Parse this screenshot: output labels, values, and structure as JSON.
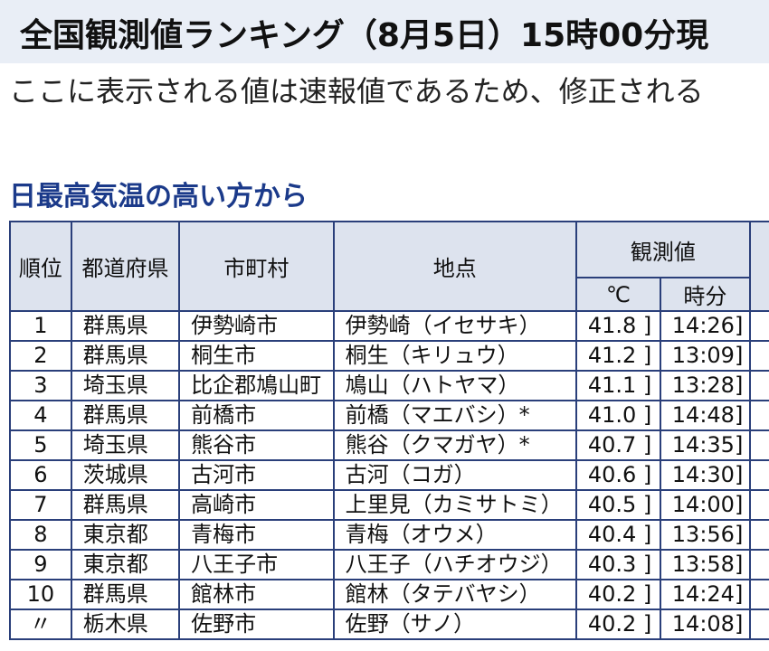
{
  "header": {
    "title": "全国観測値ランキング（8月5日）15時00分現"
  },
  "notice": {
    "text": "ここに表示される値は速報値であるため、修正される"
  },
  "section": {
    "title": "日最高気温の高い方から"
  },
  "table": {
    "headers": {
      "rank": "順位",
      "prefecture": "都道府県",
      "city": "市町村",
      "station": "地点",
      "observed": "観測値",
      "celsius": "℃",
      "time": "時分"
    },
    "rows": [
      {
        "rank": "1",
        "pref": "群馬県",
        "city": "伊勢崎市",
        "station": "伊勢崎（イセサキ）",
        "temp": "41.8 ]",
        "time": "14:26]"
      },
      {
        "rank": "2",
        "pref": "群馬県",
        "city": "桐生市",
        "station": "桐生（キリュウ）",
        "temp": "41.2 ]",
        "time": "13:09]"
      },
      {
        "rank": "3",
        "pref": "埼玉県",
        "city": "比企郡鳩山町",
        "station": "鳩山（ハトヤマ）",
        "temp": "41.1 ]",
        "time": "13:28]"
      },
      {
        "rank": "4",
        "pref": "群馬県",
        "city": "前橋市",
        "station": "前橋（マエバシ）*",
        "temp": "41.0 ]",
        "time": "14:48]"
      },
      {
        "rank": "5",
        "pref": "埼玉県",
        "city": "熊谷市",
        "station": "熊谷（クマガヤ）*",
        "temp": "40.7 ]",
        "time": "14:35]"
      },
      {
        "rank": "6",
        "pref": "茨城県",
        "city": "古河市",
        "station": "古河（コガ）",
        "temp": "40.6 ]",
        "time": "14:30]"
      },
      {
        "rank": "7",
        "pref": "群馬県",
        "city": "高崎市",
        "station": "上里見（カミサトミ）",
        "temp": "40.5 ]",
        "time": "14:00]"
      },
      {
        "rank": "8",
        "pref": "東京都",
        "city": "青梅市",
        "station": "青梅（オウメ）",
        "temp": "40.4 ]",
        "time": "13:56]"
      },
      {
        "rank": "9",
        "pref": "東京都",
        "city": "八王子市",
        "station": "八王子（ハチオウジ）",
        "temp": "40.3 ]",
        "time": "13:58]"
      },
      {
        "rank": "10",
        "pref": "群馬県",
        "city": "館林市",
        "station": "館林（タテバヤシ）",
        "temp": "40.2 ]",
        "time": "14:24]"
      },
      {
        "rank": "〃",
        "pref": "栃木県",
        "city": "佐野市",
        "station": "佐野（サノ）",
        "temp": "40.2 ]",
        "time": "14:08]"
      }
    ]
  }
}
